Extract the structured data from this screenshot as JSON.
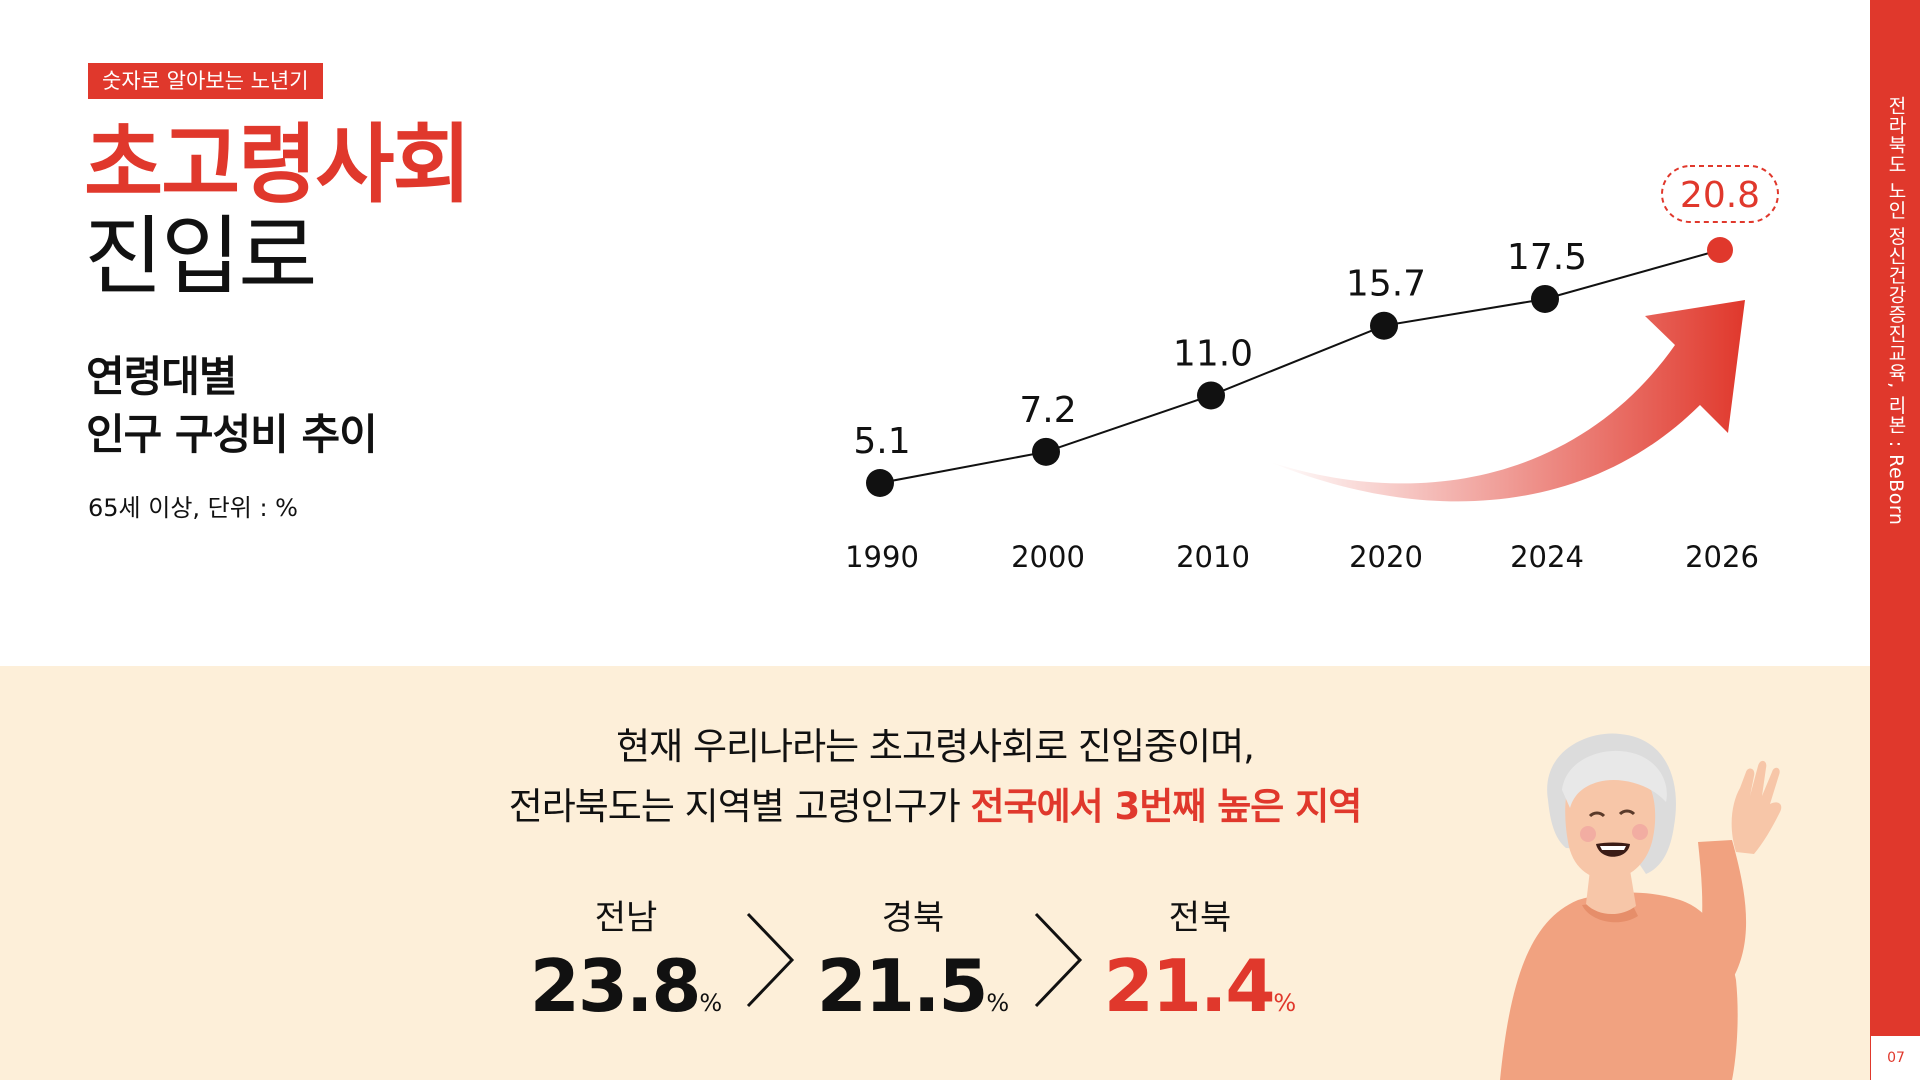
{
  "tag": "숫자로 알아보는 노년기",
  "title": {
    "line1": "초고령사회",
    "line2": "진입로"
  },
  "subtitle": {
    "line1": "연령대별",
    "line2": "인구 구성비 추이"
  },
  "unit_note": "65세 이상, 단위 : %",
  "side_label": "전라북도 노인 정신건강증진교육, 리본 : ReBorn",
  "page_number": "07",
  "colors": {
    "accent": "#e0382c",
    "bottom_bg": "#fdefd9",
    "text": "#111111"
  },
  "chart_data": {
    "type": "line",
    "title": "",
    "xlabel": "",
    "ylabel": "",
    "categories": [
      "1990",
      "2000",
      "2010",
      "2020",
      "2024",
      "2026"
    ],
    "series": [
      {
        "values": [
          5.1,
          7.2,
          11.0,
          15.7,
          17.5,
          20.8
        ]
      }
    ],
    "value_labels": [
      "5.1",
      "7.2",
      "11.0",
      "15.7",
      "17.5",
      "20.8"
    ],
    "highlighted_point": "2026",
    "ylim": [
      0,
      22
    ],
    "grid": false,
    "legend": "none"
  },
  "message": {
    "line1": "현재 우리나라는 초고령사회로 진입중이며,",
    "line2_pre": "전라북도는 지역별 고령인구가 ",
    "line2_highlight": "전국에서 3번째 높은 지역"
  },
  "ranking": [
    {
      "region": "전남",
      "value": "23.8",
      "unit": "%"
    },
    {
      "region": "경북",
      "value": "21.5",
      "unit": "%"
    },
    {
      "region": "전북",
      "value": "21.4",
      "unit": "%"
    }
  ]
}
